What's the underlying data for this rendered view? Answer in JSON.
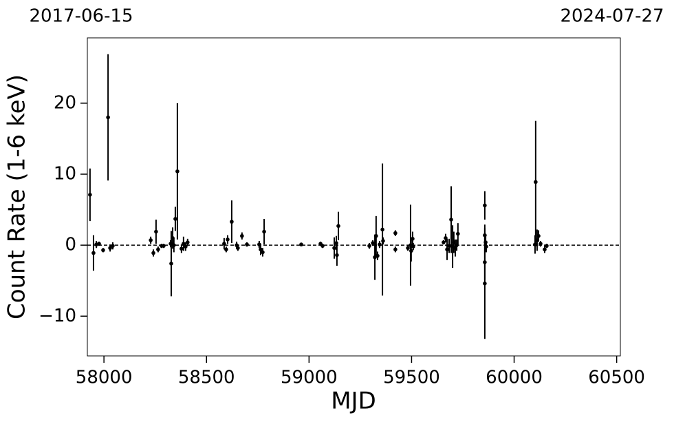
{
  "chart_data": {
    "type": "errorbar",
    "top_axis_labels": [
      "2017-06-15",
      "2024-07-27"
    ],
    "xlabel": "MJD",
    "ylabel": "Count Rate (1-6 keV)",
    "color": "#000000",
    "hline": 0,
    "xlim": [
      57919,
      60518
    ],
    "ylim": [
      -15.6,
      29.2
    ],
    "xticks": [
      58000,
      58500,
      59000,
      59500,
      60000,
      60500
    ],
    "yticks": [
      {
        "value": -10,
        "label": "−10"
      },
      0,
      10,
      20
    ],
    "x": [
      57932,
      57949,
      57963,
      57976,
      57996,
      58020,
      58030,
      58043,
      58228,
      58241,
      58254,
      58264,
      58281,
      58291,
      58325,
      58328,
      58335,
      58341,
      58348,
      58358,
      58378,
      58388,
      58398,
      58408,
      58586,
      58596,
      58603,
      58623,
      58647,
      58653,
      58673,
      58697,
      58757,
      58764,
      58774,
      58781,
      58962,
      59056,
      59066,
      59123,
      59133,
      59136,
      59143,
      59294,
      59311,
      59321,
      59327,
      59334,
      59344,
      59358,
      59361,
      59421,
      59421,
      59482,
      59495,
      59498,
      59505,
      59508,
      59656,
      59666,
      59673,
      59683,
      59693,
      59700,
      59706,
      59713,
      59720,
      59726,
      59857,
      59857,
      59857,
      59857,
      59861,
      59864,
      60102,
      60105,
      60112,
      60119,
      60129,
      60149,
      60159
    ],
    "values": [
      7.1,
      -1.1,
      0.1,
      0.2,
      -0.7,
      18.0,
      -0.4,
      -0.1,
      0.7,
      -1.1,
      1.9,
      -0.6,
      -0.1,
      -0.1,
      0.2,
      -2.6,
      1.0,
      0.0,
      3.7,
      10.4,
      -0.5,
      0.2,
      -0.2,
      0.4,
      0.2,
      -0.6,
      0.8,
      3.3,
      0.0,
      -0.4,
      1.3,
      0.1,
      0.1,
      -0.6,
      -1.0,
      1.9,
      0.1,
      0.2,
      -0.1,
      -0.4,
      0.3,
      -1.4,
      2.7,
      -0.1,
      0.3,
      -1.7,
      1.3,
      -1.5,
      0.1,
      2.2,
      0.6,
      1.7,
      -0.6,
      -0.4,
      0.0,
      -0.8,
      0.9,
      -0.2,
      0.4,
      1.0,
      -0.6,
      -0.1,
      3.6,
      -0.2,
      0.4,
      -0.4,
      0.0,
      1.6,
      5.6,
      1.4,
      -2.4,
      -5.4,
      0.4,
      -0.2,
      0.1,
      8.9,
      0.7,
      1.3,
      0.2,
      -0.6,
      -0.1
    ],
    "errors": [
      3.7,
      2.5,
      0.5,
      0.3,
      0.3,
      8.9,
      0.5,
      0.5,
      0.5,
      0.5,
      1.7,
      0.4,
      0.3,
      0.3,
      0.5,
      4.6,
      1.5,
      1.0,
      1.7,
      9.6,
      0.6,
      1.0,
      0.6,
      0.5,
      0.8,
      0.4,
      0.6,
      3.0,
      0.5,
      0.4,
      0.5,
      0.3,
      0.5,
      0.8,
      0.6,
      1.8,
      0.2,
      0.3,
      0.3,
      1.5,
      1.0,
      1.5,
      2.0,
      0.4,
      0.4,
      3.2,
      2.8,
      0.6,
      0.5,
      9.3,
      0.5,
      0.4,
      0.4,
      0.4,
      5.7,
      1.5,
      1.0,
      0.5,
      0.3,
      0.6,
      1.5,
      1.0,
      4.7,
      3.0,
      1.5,
      1.2,
      0.8,
      1.5,
      2.0,
      1.5,
      2.5,
      7.8,
      1.0,
      0.8,
      1.3,
      8.6,
      1.5,
      0.8,
      0.4,
      0.5,
      0.3
    ]
  }
}
